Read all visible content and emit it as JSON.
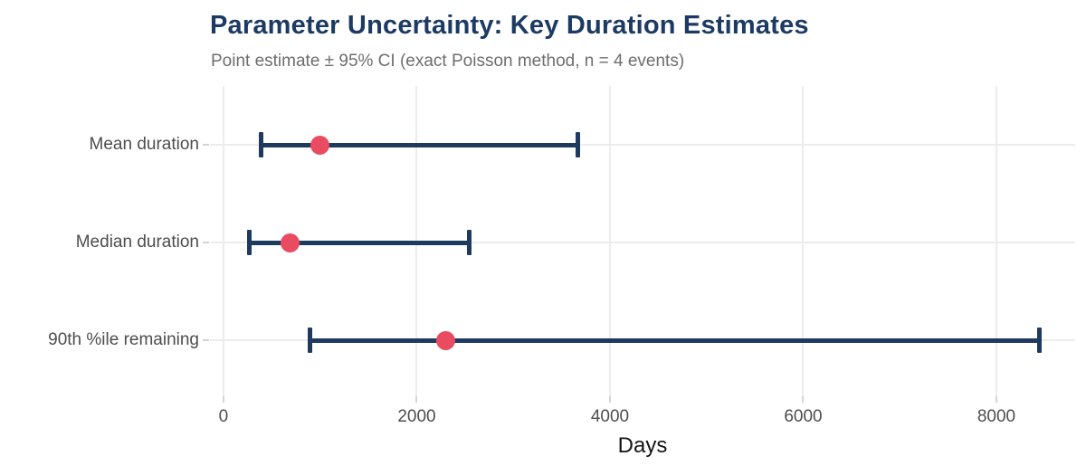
{
  "chart_data": {
    "type": "scatter",
    "subtype": "horizontal_point_interval_errorbar",
    "title": "Parameter Uncertainty: Key Duration Estimates",
    "subtitle": "Point estimate ± 95% CI (exact Poisson method, n = 4 events)",
    "xlabel": "Days",
    "categories": [
      "Mean duration",
      "Median duration",
      "90th %ile remaining"
    ],
    "rows": [
      {
        "label": "Mean duration",
        "estimate": 1000,
        "ci_lower": 391,
        "ci_upper": 3670
      },
      {
        "label": "Median duration",
        "estimate": 693,
        "ci_lower": 271,
        "ci_upper": 2544
      },
      {
        "label": "90th %ile remaining",
        "estimate": 2303,
        "ci_lower": 899,
        "ci_upper": 8449
      }
    ],
    "x_ticks": [
      0,
      2000,
      4000,
      6000,
      8000
    ],
    "xlim": [
      -140,
      8815
    ],
    "grid": true,
    "legend": "none",
    "colors": {
      "interval": "#1e3a5f",
      "point": "#e94b61",
      "title": "#1c3a63",
      "subtitle": "#6e6e6e",
      "axis_text": "#4d4d4d",
      "axis_title": "#141414",
      "gridline": "#ececec",
      "tick": "#d4d4d4",
      "background": "#ffffff"
    }
  }
}
